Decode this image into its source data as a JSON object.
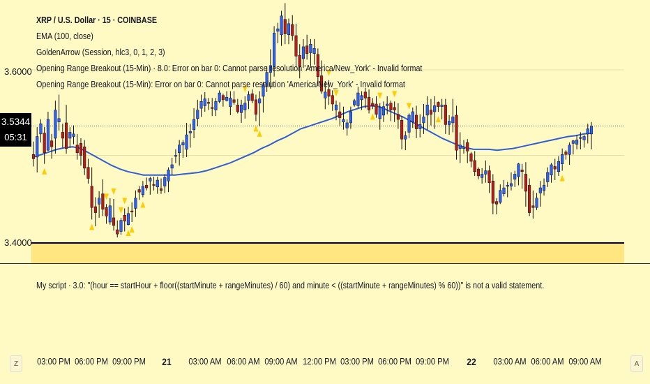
{
  "legend": {
    "title": "XRP / U.S. Dollar · 15 · COINBASE",
    "lines": [
      "EMA (100, close)",
      "GoldenArrow (Session, hlc3, 0, 1, 2, 3)",
      "Opening Range Breakout (15-Min) · 8.0: Error on bar 0: Cannot parse resolution 'America/New_York' - Invalid format",
      "Opening Range Breakout (15-Min): Error on bar 0: Cannot parse resolution 'America/New_York' - Invalid format"
    ]
  },
  "price_axis": {
    "labels": [
      "3.6000",
      "3.4000"
    ],
    "last_price": "3.5344",
    "countdown": "05:31"
  },
  "script_pane": {
    "message": "My script · 3.0: \"(hour == startHour + floor((startMinute + rangeMinutes) / 60) and minute < ((startMinute + rangeMinutes) % 60))\" is not a valid statement."
  },
  "time_axis": {
    "corner_left": "Z",
    "corner_right": "A",
    "ticks": [
      "03:00 PM",
      "06:00 PM",
      "09:00 PM",
      "21",
      "03:00 AM",
      "06:00 AM",
      "09:00 AM",
      "12:00 PM",
      "03:00 PM",
      "06:00 PM",
      "09:00 PM",
      "22",
      "03:00 AM",
      "06:00 AM",
      "09:00 AM"
    ]
  },
  "colors": {
    "background": "#fff9c4",
    "up": "#2962ff",
    "down": "#b71c1c",
    "ema": "#2f5fd0",
    "arrow": "#ffcc00",
    "zone": "#ffe680"
  },
  "chart_data": {
    "type": "candlestick",
    "symbol": "XRP / U.S. Dollar · 15 · COINBASE",
    "interval": "15",
    "ylim": [
      3.36,
      3.7
    ],
    "grid": true,
    "last_price": 3.5344,
    "ema_period": 100,
    "candles": [
      [
        3.501,
        3.516,
        3.487,
        3.496
      ],
      [
        3.498,
        3.533,
        3.48,
        3.522
      ],
      [
        3.525,
        3.542,
        3.515,
        3.537
      ],
      [
        3.526,
        3.533,
        3.49,
        3.503
      ],
      [
        3.506,
        3.551,
        3.505,
        3.542
      ],
      [
        3.517,
        3.525,
        3.496,
        3.51
      ],
      [
        3.52,
        3.564,
        3.502,
        3.553
      ],
      [
        3.539,
        3.571,
        3.529,
        3.543
      ],
      [
        3.527,
        3.537,
        3.509,
        3.52
      ],
      [
        3.538,
        3.559,
        3.502,
        3.508
      ],
      [
        3.52,
        3.533,
        3.509,
        3.527
      ],
      [
        3.522,
        3.535,
        3.513,
        3.525
      ],
      [
        3.512,
        3.525,
        3.495,
        3.503
      ],
      [
        3.514,
        3.52,
        3.488,
        3.5
      ],
      [
        3.51,
        3.518,
        3.477,
        3.485
      ],
      [
        3.486,
        3.496,
        3.467,
        3.473
      ],
      [
        3.464,
        3.486,
        3.425,
        3.439
      ],
      [
        3.44,
        3.451,
        3.417,
        3.433
      ],
      [
        3.443,
        3.458,
        3.427,
        3.45
      ],
      [
        3.455,
        3.472,
        3.429,
        3.437
      ],
      [
        3.439,
        3.443,
        3.42,
        3.429
      ],
      [
        3.422,
        3.45,
        3.419,
        3.441
      ],
      [
        3.427,
        3.449,
        3.412,
        3.418
      ],
      [
        3.413,
        3.424,
        3.404,
        3.408
      ],
      [
        3.411,
        3.427,
        3.407,
        3.424
      ],
      [
        3.43,
        3.438,
        3.411,
        3.423
      ],
      [
        3.419,
        3.44,
        3.418,
        3.432
      ],
      [
        3.435,
        3.445,
        3.422,
        3.434
      ],
      [
        3.438,
        3.459,
        3.428,
        3.45
      ],
      [
        3.46,
        3.464,
        3.448,
        3.457
      ],
      [
        3.454,
        3.47,
        3.451,
        3.464
      ],
      [
        3.465,
        3.474,
        3.459,
        3.462
      ],
      [
        3.47,
        3.475,
        3.454,
        3.473
      ],
      [
        3.466,
        3.475,
        3.459,
        3.465
      ],
      [
        3.463,
        3.475,
        3.455,
        3.471
      ],
      [
        3.461,
        3.473,
        3.455,
        3.459
      ],
      [
        3.464,
        3.478,
        3.456,
        3.474
      ],
      [
        3.47,
        3.486,
        3.457,
        3.483
      ],
      [
        3.485,
        3.497,
        3.477,
        3.489
      ],
      [
        3.5,
        3.507,
        3.491,
        3.5
      ],
      [
        3.503,
        3.518,
        3.488,
        3.512
      ],
      [
        3.512,
        3.518,
        3.497,
        3.515
      ],
      [
        3.507,
        3.538,
        3.498,
        3.524
      ],
      [
        3.526,
        3.537,
        3.509,
        3.528
      ],
      [
        3.53,
        3.555,
        3.52,
        3.542
      ],
      [
        3.543,
        3.565,
        3.534,
        3.553
      ],
      [
        3.555,
        3.571,
        3.545,
        3.563
      ],
      [
        3.558,
        3.574,
        3.551,
        3.566
      ],
      [
        3.562,
        3.567,
        3.553,
        3.561
      ],
      [
        3.556,
        3.567,
        3.546,
        3.555
      ],
      [
        3.553,
        3.567,
        3.546,
        3.563
      ],
      [
        3.563,
        3.576,
        3.561,
        3.573
      ],
      [
        3.57,
        3.572,
        3.557,
        3.565
      ],
      [
        3.564,
        3.575,
        3.563,
        3.568
      ],
      [
        3.557,
        3.575,
        3.547,
        3.567
      ],
      [
        3.565,
        3.575,
        3.559,
        3.562
      ],
      [
        3.559,
        3.566,
        3.549,
        3.551
      ],
      [
        3.55,
        3.565,
        3.538,
        3.559
      ],
      [
        3.553,
        3.569,
        3.543,
        3.561
      ],
      [
        3.564,
        3.575,
        3.554,
        3.571
      ],
      [
        3.572,
        3.577,
        3.561,
        3.564
      ],
      [
        3.565,
        3.571,
        3.54,
        3.548
      ],
      [
        3.561,
        3.575,
        3.534,
        3.566
      ],
      [
        3.569,
        3.586,
        3.55,
        3.583
      ],
      [
        3.581,
        3.604,
        3.574,
        3.597
      ],
      [
        3.597,
        3.624,
        3.578,
        3.605
      ],
      [
        3.604,
        3.651,
        3.592,
        3.643
      ],
      [
        3.645,
        3.655,
        3.631,
        3.648
      ],
      [
        3.641,
        3.669,
        3.628,
        3.663
      ],
      [
        3.659,
        3.678,
        3.63,
        3.642
      ],
      [
        3.641,
        3.66,
        3.63,
        3.654
      ],
      [
        3.653,
        3.664,
        3.634,
        3.64
      ],
      [
        3.64,
        3.654,
        3.603,
        3.616
      ],
      [
        3.617,
        3.63,
        3.59,
        3.604
      ],
      [
        3.613,
        3.636,
        3.602,
        3.627
      ],
      [
        3.628,
        3.641,
        3.612,
        3.619
      ],
      [
        3.62,
        3.636,
        3.602,
        3.63
      ],
      [
        3.619,
        3.636,
        3.606,
        3.625
      ],
      [
        3.618,
        3.625,
        3.581,
        3.592
      ],
      [
        3.593,
        3.611,
        3.572,
        3.575
      ],
      [
        3.567,
        3.587,
        3.554,
        3.574
      ],
      [
        3.577,
        3.588,
        3.559,
        3.569
      ],
      [
        3.57,
        3.576,
        3.552,
        3.56
      ],
      [
        3.553,
        3.564,
        3.541,
        3.559
      ],
      [
        3.551,
        3.562,
        3.535,
        3.544
      ],
      [
        3.539,
        3.557,
        3.53,
        3.542
      ],
      [
        3.532,
        3.542,
        3.523,
        3.538
      ],
      [
        3.538,
        3.557,
        3.531,
        3.551
      ],
      [
        3.559,
        3.566,
        3.557,
        3.564
      ],
      [
        3.558,
        3.58,
        3.555,
        3.573
      ],
      [
        3.565,
        3.575,
        3.553,
        3.57
      ],
      [
        3.574,
        3.579,
        3.555,
        3.567
      ],
      [
        3.568,
        3.577,
        3.549,
        3.553
      ],
      [
        3.561,
        3.567,
        3.554,
        3.558
      ],
      [
        3.56,
        3.569,
        3.544,
        3.548
      ],
      [
        3.543,
        3.561,
        3.53,
        3.556
      ],
      [
        3.547,
        3.563,
        3.539,
        3.557
      ],
      [
        3.558,
        3.569,
        3.548,
        3.56
      ],
      [
        3.561,
        3.564,
        3.54,
        3.553
      ],
      [
        3.556,
        3.563,
        3.539,
        3.553
      ],
      [
        3.548,
        3.561,
        3.531,
        3.542
      ],
      [
        3.541,
        3.546,
        3.507,
        3.519
      ],
      [
        3.519,
        3.528,
        3.506,
        3.523
      ],
      [
        3.527,
        3.549,
        3.52,
        3.547
      ],
      [
        3.539,
        3.556,
        3.532,
        3.551
      ],
      [
        3.547,
        3.558,
        3.52,
        3.531
      ],
      [
        3.531,
        3.548,
        3.521,
        3.536
      ],
      [
        3.538,
        3.56,
        3.525,
        3.545
      ],
      [
        3.547,
        3.569,
        3.53,
        3.559
      ],
      [
        3.553,
        3.566,
        3.535,
        3.548
      ],
      [
        3.551,
        3.569,
        3.531,
        3.558
      ],
      [
        3.562,
        3.563,
        3.551,
        3.557
      ],
      [
        3.557,
        3.566,
        3.542,
        3.559
      ],
      [
        3.559,
        3.566,
        3.525,
        3.536
      ],
      [
        3.536,
        3.547,
        3.524,
        3.54
      ],
      [
        3.538,
        3.566,
        3.527,
        3.545
      ],
      [
        3.547,
        3.558,
        3.495,
        3.506
      ],
      [
        3.508,
        3.527,
        3.491,
        3.512
      ],
      [
        3.508,
        3.518,
        3.502,
        3.51
      ],
      [
        3.515,
        3.519,
        3.491,
        3.505
      ],
      [
        3.502,
        3.504,
        3.486,
        3.493
      ],
      [
        3.494,
        3.505,
        3.476,
        3.481
      ],
      [
        3.484,
        3.486,
        3.472,
        3.476
      ],
      [
        3.474,
        3.485,
        3.467,
        3.478
      ],
      [
        3.478,
        3.494,
        3.468,
        3.482
      ],
      [
        3.482,
        3.488,
        3.456,
        3.468
      ],
      [
        3.47,
        3.478,
        3.431,
        3.444
      ],
      [
        3.446,
        3.45,
        3.431,
        3.443
      ],
      [
        3.445,
        3.466,
        3.443,
        3.459
      ],
      [
        3.455,
        3.471,
        3.452,
        3.462
      ],
      [
        3.465,
        3.469,
        3.451,
        3.465
      ],
      [
        3.464,
        3.48,
        3.459,
        3.467
      ],
      [
        3.472,
        3.482,
        3.463,
        3.478
      ],
      [
        3.475,
        3.491,
        3.465,
        3.49
      ],
      [
        3.483,
        3.49,
        3.461,
        3.481
      ],
      [
        3.478,
        3.492,
        3.44,
        3.458
      ],
      [
        3.465,
        3.473,
        3.429,
        3.433
      ],
      [
        3.441,
        3.459,
        3.426,
        3.439
      ],
      [
        3.439,
        3.456,
        3.436,
        3.45
      ],
      [
        3.456,
        3.47,
        3.44,
        3.462
      ],
      [
        3.459,
        3.473,
        3.453,
        3.465
      ],
      [
        3.469,
        3.486,
        3.463,
        3.48
      ],
      [
        3.477,
        3.491,
        3.468,
        3.489
      ],
      [
        3.487,
        3.496,
        3.471,
        3.484
      ],
      [
        3.481,
        3.499,
        3.476,
        3.493
      ],
      [
        3.49,
        3.508,
        3.482,
        3.501
      ],
      [
        3.504,
        3.506,
        3.495,
        3.501
      ],
      [
        3.501,
        3.515,
        3.489,
        3.512
      ],
      [
        3.514,
        3.518,
        3.501,
        3.517
      ],
      [
        3.513,
        3.524,
        3.507,
        3.518
      ],
      [
        3.521,
        3.527,
        3.507,
        3.521
      ],
      [
        3.518,
        3.524,
        3.509,
        3.522
      ],
      [
        3.525,
        3.537,
        3.514,
        3.531
      ],
      [
        3.525,
        3.539,
        3.507,
        3.534
      ]
    ],
    "ema": [
      3.498,
      3.501,
      3.504,
      3.507,
      3.509,
      3.51,
      3.508,
      3.503,
      3.498,
      3.493,
      3.488,
      3.484,
      3.481,
      3.479,
      3.477,
      3.477,
      3.477,
      3.477,
      3.477,
      3.478,
      3.479,
      3.48,
      3.482,
      3.485,
      3.488,
      3.491,
      3.495,
      3.499,
      3.503,
      3.508,
      3.512,
      3.517,
      3.521,
      3.526,
      3.531,
      3.534,
      3.537,
      3.54,
      3.543,
      3.547,
      3.551,
      3.554,
      3.557,
      3.558,
      3.557,
      3.553,
      3.549,
      3.545,
      3.54,
      3.535,
      3.53,
      3.525,
      3.52,
      3.516,
      3.512,
      3.509,
      3.507,
      3.507,
      3.507,
      3.506,
      3.507,
      3.508,
      3.51,
      3.512,
      3.514,
      3.516,
      3.518,
      3.52,
      3.522,
      3.523,
      3.525,
      3.526
    ]
  }
}
